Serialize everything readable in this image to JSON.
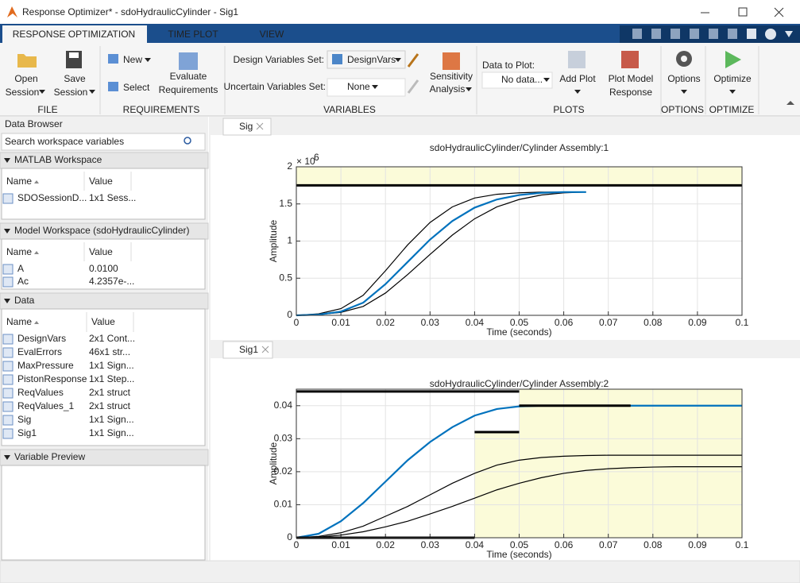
{
  "window": {
    "title": "Response Optimizer* - sdoHydraulicCylinder - Sig1"
  },
  "tabs": [
    "RESPONSE OPTIMIZATION",
    "TIME PLOT",
    "VIEW"
  ],
  "toolstrip": {
    "open": [
      "Open",
      "Session"
    ],
    "save": [
      "Save",
      "Session"
    ],
    "new": "New",
    "select": "Select",
    "evaluate": [
      "Evaluate",
      "Requirements"
    ],
    "design_vars_label": "Design Variables Set:",
    "design_vars_value": "DesignVars",
    "uncertain_vars_label": "Uncertain Variables Set:",
    "uncertain_vars_value": "None",
    "sensitivity": [
      "Sensitivity",
      "Analysis"
    ],
    "data_to_plot_label": "Data to Plot:",
    "data_to_plot_value": "No data...",
    "add_plot": "Add Plot",
    "plot_model_response": [
      "Plot Model",
      "Response"
    ],
    "options": "Options",
    "optimize": "Optimize",
    "group_labels": [
      "FILE",
      "REQUIREMENTS",
      "VARIABLES",
      "PLOTS",
      "OPTIONS",
      "OPTIMIZE"
    ]
  },
  "data_browser": {
    "title": "Data Browser",
    "search_placeholder": "Search workspace variables",
    "sections": [
      {
        "title": "MATLAB Workspace",
        "columns": [
          "Name",
          "Value"
        ],
        "rows": [
          [
            "SDOSessionD...",
            "1x1 Sess..."
          ]
        ]
      },
      {
        "title": "Model Workspace (sdoHydraulicCylinder)",
        "columns": [
          "Name",
          "Value"
        ],
        "rows": [
          [
            "A",
            "0.0100"
          ],
          [
            "Ac",
            "4.2357e-..."
          ]
        ]
      },
      {
        "title": "Data",
        "columns": [
          "Name",
          "Value"
        ],
        "rows": [
          [
            "DesignVars",
            "2x1 Cont..."
          ],
          [
            "EvalErrors",
            "46x1 str..."
          ],
          [
            "MaxPressure",
            "1x1 Sign..."
          ],
          [
            "PistonResponse",
            "1x1 Step..."
          ],
          [
            "ReqValues",
            "2x1 struct"
          ],
          [
            "ReqValues_1",
            "2x1 struct"
          ],
          [
            "Sig",
            "1x1 Sign..."
          ],
          [
            "Sig1",
            "1x1 Sign..."
          ]
        ]
      },
      {
        "title": "Variable Preview"
      }
    ]
  },
  "plots": [
    {
      "tab": "Sig",
      "title": "sdoHydraulicCylinder/Cylinder Assembly:1",
      "xlabel": "Time (seconds)",
      "ylabel": "Amplitude",
      "y_multiplier": {
        "base": "× 10",
        "power": "6"
      },
      "xlim": [
        0,
        0.1
      ],
      "ylim": [
        0,
        2
      ],
      "xticks": [
        0,
        0.01,
        0.02,
        0.03,
        0.04,
        0.05,
        0.06,
        0.07,
        0.08,
        0.09,
        0.1
      ],
      "yticks": [
        0,
        0.5,
        1,
        1.5,
        2
      ],
      "grid": true,
      "shade_color": "#fbfbd9",
      "shaded_regions": [
        {
          "x": [
            0,
            0.1,
            0.1,
            0
          ],
          "y": [
            1.75,
            1.75,
            2,
            2
          ]
        }
      ],
      "bounds": [
        {
          "x": [
            0,
            0.1
          ],
          "y": [
            1.75,
            1.75
          ]
        }
      ],
      "bound_color": "#000000",
      "x": [
        0,
        0.005,
        0.01,
        0.015,
        0.02,
        0.025,
        0.03,
        0.035,
        0.04,
        0.045,
        0.05,
        0.055,
        0.06,
        0.065
      ],
      "series": [
        {
          "color": "#000000",
          "values": [
            0,
            0.02,
            0.09,
            0.27,
            0.6,
            0.95,
            1.25,
            1.46,
            1.58,
            1.63,
            1.65,
            1.66,
            1.66,
            1.66
          ]
        },
        {
          "color": "#000000",
          "values": [
            0,
            0.01,
            0.04,
            0.12,
            0.3,
            0.55,
            0.82,
            1.08,
            1.3,
            1.46,
            1.56,
            1.62,
            1.65,
            1.66
          ]
        },
        {
          "color": "#0072bd",
          "values": [
            0,
            0.01,
            0.05,
            0.17,
            0.42,
            0.72,
            1.02,
            1.27,
            1.45,
            1.56,
            1.62,
            1.65,
            1.66,
            1.66
          ]
        }
      ]
    },
    {
      "tab": "Sig1",
      "title": "sdoHydraulicCylinder/Cylinder Assembly:2",
      "xlabel": "Time (seconds)",
      "ylabel": "Amplitude",
      "xlim": [
        0,
        0.1
      ],
      "ylim": [
        0,
        0.045
      ],
      "xticks": [
        0,
        0.01,
        0.02,
        0.03,
        0.04,
        0.05,
        0.06,
        0.07,
        0.08,
        0.09,
        0.1
      ],
      "yticks": [
        0,
        0.01,
        0.02,
        0.03,
        0.04
      ],
      "grid": true,
      "shade_color": "#fbfbd9",
      "shaded_regions": [
        {
          "x": [
            0.04,
            0.05,
            0.05,
            0.04
          ],
          "y": [
            0,
            0,
            0.032,
            0.032
          ]
        },
        {
          "x": [
            0.05,
            0.1,
            0.1,
            0.05
          ],
          "y": [
            0,
            0,
            0.045,
            0.045
          ]
        }
      ],
      "bounds": [
        {
          "x": [
            0,
            0.05
          ],
          "y": [
            0.0443,
            0.0443
          ]
        },
        {
          "x": [
            0,
            0.04
          ],
          "y": [
            0,
            0
          ]
        },
        {
          "x": [
            0.04,
            0.05
          ],
          "y": [
            0.032,
            0.032
          ]
        },
        {
          "x": [
            0.05,
            0.075
          ],
          "y": [
            0.04,
            0.04
          ]
        }
      ],
      "bound_color": "#000000",
      "x": [
        0,
        0.005,
        0.01,
        0.015,
        0.02,
        0.025,
        0.03,
        0.035,
        0.04,
        0.045,
        0.05,
        0.055,
        0.06,
        0.065,
        0.07,
        0.075,
        0.08,
        0.085,
        0.09,
        0.095,
        0.1
      ],
      "series": [
        {
          "color": "#000000",
          "values": [
            0,
            0.0004,
            0.0015,
            0.0035,
            0.0065,
            0.0095,
            0.013,
            0.0165,
            0.0195,
            0.022,
            0.0235,
            0.0243,
            0.0247,
            0.0249,
            0.025,
            0.025,
            0.025,
            0.025,
            0.025,
            0.025,
            0.025
          ]
        },
        {
          "color": "#000000",
          "values": [
            0,
            0.0002,
            0.0008,
            0.0018,
            0.0033,
            0.005,
            0.0072,
            0.0095,
            0.012,
            0.0145,
            0.0165,
            0.0182,
            0.0195,
            0.0204,
            0.0209,
            0.0212,
            0.0214,
            0.0215,
            0.0215,
            0.0215,
            0.0215
          ]
        },
        {
          "color": "#0072bd",
          "values": [
            0,
            0.0012,
            0.005,
            0.0105,
            0.017,
            0.0235,
            0.029,
            0.0335,
            0.037,
            0.039,
            0.0398,
            0.04,
            0.04,
            0.04,
            0.04,
            0.04,
            0.04,
            0.04,
            0.04,
            0.04,
            0.04
          ]
        }
      ]
    }
  ]
}
